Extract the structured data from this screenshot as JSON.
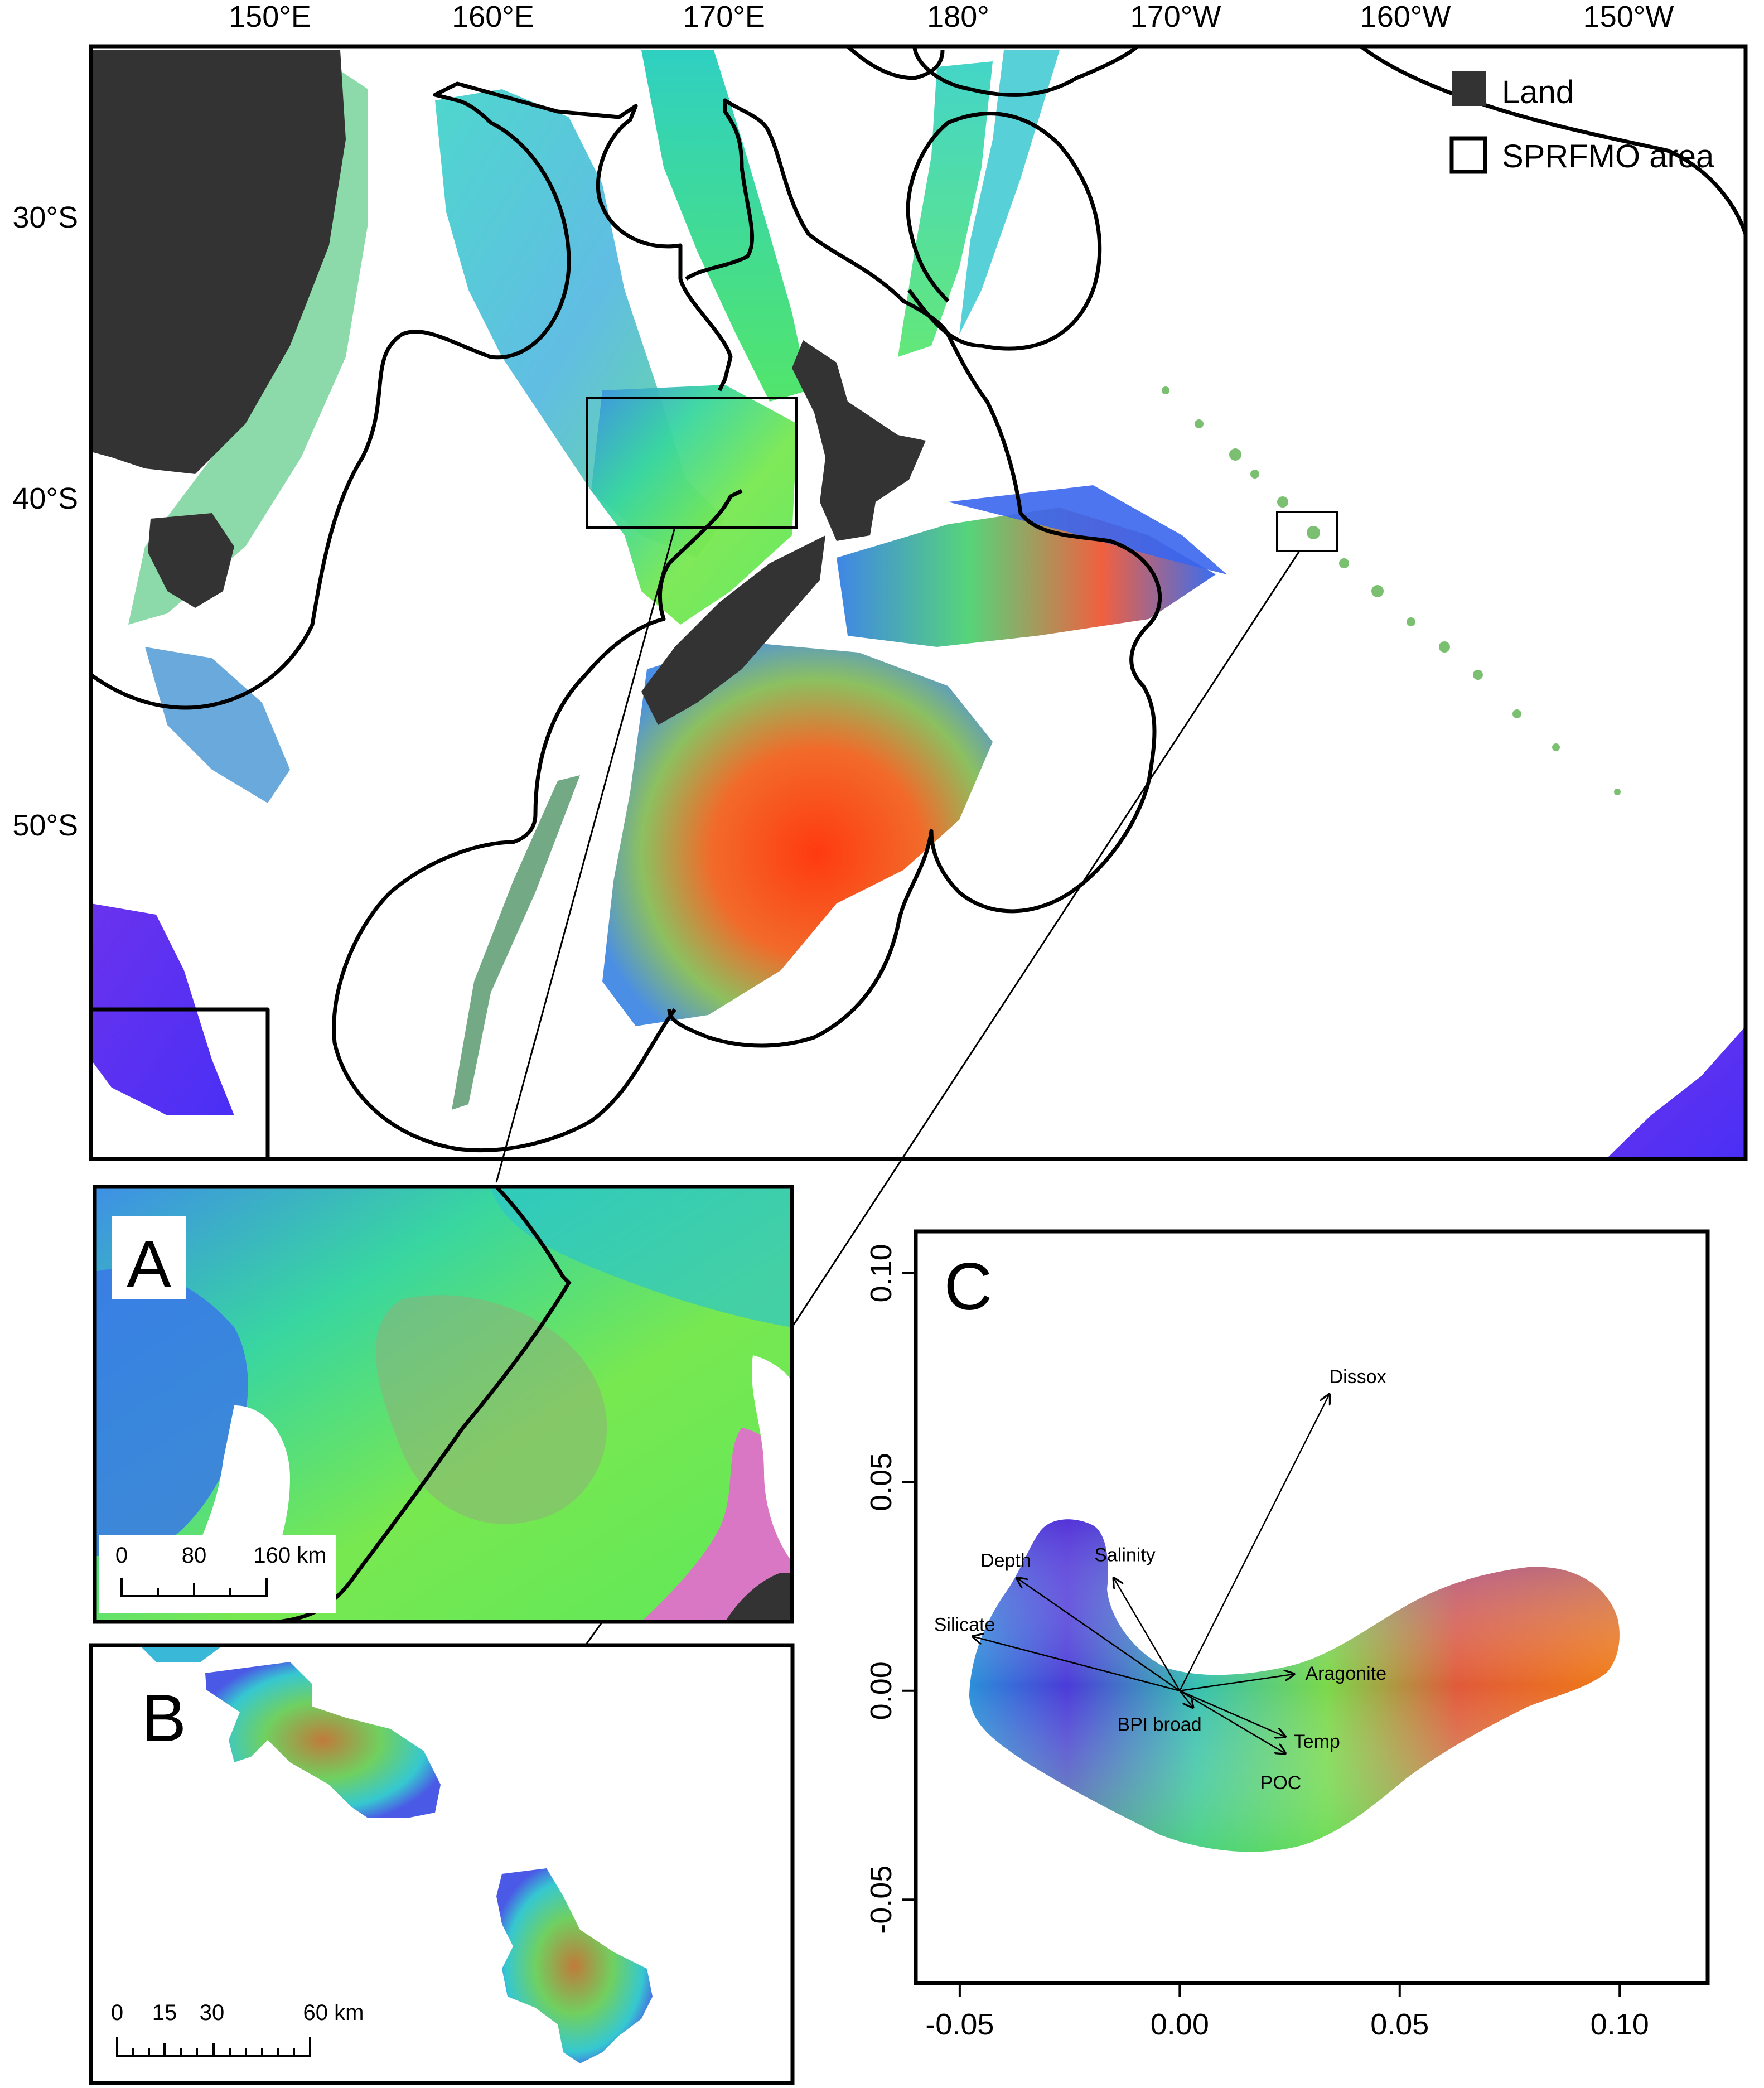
{
  "main_map": {
    "lon_labels": [
      "150°E",
      "160°E",
      "170°E",
      "180°",
      "170°W",
      "160°W",
      "150°W"
    ],
    "lat_labels": [
      "30°S",
      "40°S",
      "50°S"
    ],
    "legend": {
      "land": "Land",
      "sprfmo": "SPRFMO area"
    },
    "colors": {
      "land": "#333333",
      "boundary": "#000000",
      "ocean": "#ffffff"
    }
  },
  "inset_a": {
    "letter": "A",
    "scale": {
      "t0": "0",
      "t1": "80",
      "t2": "160 km"
    }
  },
  "inset_b": {
    "letter": "B",
    "scale": {
      "t0": "0",
      "t1": "15",
      "t2": "30",
      "t3": "60 km"
    }
  },
  "panel_c": {
    "letter": "C",
    "chart_data": {
      "type": "scatter",
      "xlim": [
        -0.06,
        0.12
      ],
      "ylim": [
        -0.07,
        0.11
      ],
      "x_ticks": [
        "-0.05",
        "0.00",
        "0.05",
        "0.10"
      ],
      "y_ticks": [
        "-0.05",
        "0.00",
        "0.05",
        "0.10"
      ],
      "vectors": [
        {
          "label": "Dissox",
          "x": 0.034,
          "y": 0.071
        },
        {
          "label": "Depth",
          "x": -0.037,
          "y": 0.027
        },
        {
          "label": "Salinity",
          "x": -0.015,
          "y": 0.027
        },
        {
          "label": "Silicate",
          "x": -0.047,
          "y": 0.013
        },
        {
          "label": "Aragonite",
          "x": 0.026,
          "y": 0.004
        },
        {
          "label": "BPI broad",
          "x": 0.003,
          "y": -0.004
        },
        {
          "label": "Temp",
          "x": 0.024,
          "y": -0.011
        },
        {
          "label": "POC",
          "x": 0.024,
          "y": -0.015
        }
      ]
    }
  }
}
